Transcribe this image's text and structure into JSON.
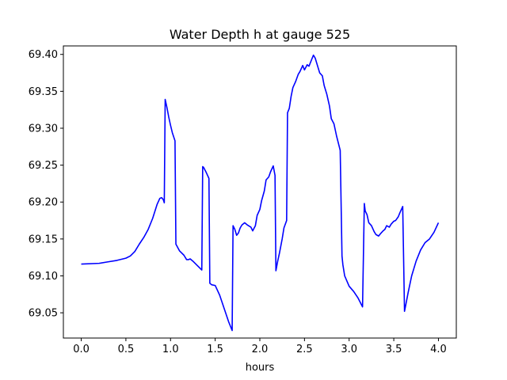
{
  "chart_data": {
    "type": "line",
    "title": "Water Depth h at gauge 525",
    "xlabel": "hours",
    "ylabel": "",
    "xlim": [
      -0.2,
      4.2
    ],
    "ylim": [
      69.0158,
      69.4115
    ],
    "xticks": [
      0.0,
      0.5,
      1.0,
      1.5,
      2.0,
      2.5,
      3.0,
      3.5,
      4.0
    ],
    "xtick_labels": [
      "0.0",
      "0.5",
      "1.0",
      "1.5",
      "2.0",
      "2.5",
      "3.0",
      "3.5",
      "4.0"
    ],
    "yticks": [
      69.05,
      69.1,
      69.15,
      69.2,
      69.25,
      69.3,
      69.35,
      69.4
    ],
    "ytick_labels": [
      "69.05",
      "69.10",
      "69.15",
      "69.20",
      "69.25",
      "69.30",
      "69.35",
      "69.40"
    ],
    "grid": false,
    "series": [
      {
        "color": "#0000ff",
        "x": [
          0.0,
          0.2,
          0.3,
          0.4,
          0.5,
          0.55,
          0.6,
          0.65,
          0.7,
          0.75,
          0.8,
          0.85,
          0.88,
          0.9,
          0.92,
          0.93,
          0.94,
          0.96,
          0.98,
          1.0,
          1.02,
          1.05,
          1.06,
          1.1,
          1.15,
          1.18,
          1.2,
          1.22,
          1.25,
          1.3,
          1.35,
          1.36,
          1.37,
          1.4,
          1.43,
          1.44,
          1.46,
          1.5,
          1.55,
          1.6,
          1.65,
          1.69,
          1.7,
          1.72,
          1.74,
          1.76,
          1.78,
          1.8,
          1.83,
          1.86,
          1.9,
          1.92,
          1.95,
          1.97,
          2.0,
          2.02,
          2.05,
          2.07,
          2.1,
          2.12,
          2.15,
          2.17,
          2.18,
          2.2,
          2.22,
          2.25,
          2.27,
          2.3,
          2.31,
          2.33,
          2.35,
          2.37,
          2.4,
          2.43,
          2.45,
          2.48,
          2.5,
          2.53,
          2.55,
          2.58,
          2.6,
          2.62,
          2.65,
          2.67,
          2.7,
          2.72,
          2.75,
          2.78,
          2.8,
          2.83,
          2.86,
          2.9,
          2.92,
          2.93,
          2.95,
          3.0,
          3.05,
          3.1,
          3.15,
          3.17,
          3.18,
          3.2,
          3.22,
          3.25,
          3.28,
          3.3,
          3.33,
          3.35,
          3.38,
          3.4,
          3.42,
          3.45,
          3.47,
          3.5,
          3.52,
          3.55,
          3.57,
          3.6,
          3.62,
          3.63,
          3.66,
          3.7,
          3.75,
          3.8,
          3.85,
          3.9,
          3.95,
          4.0
        ],
        "y": [
          69.116,
          69.117,
          69.119,
          69.121,
          69.124,
          69.127,
          69.133,
          69.143,
          69.152,
          69.163,
          69.178,
          69.197,
          69.205,
          69.206,
          69.203,
          69.199,
          69.339,
          69.328,
          69.315,
          69.304,
          69.294,
          69.283,
          69.143,
          69.134,
          69.128,
          69.122,
          69.122,
          69.123,
          69.12,
          69.114,
          69.108,
          69.248,
          69.247,
          69.24,
          69.232,
          69.09,
          69.088,
          69.087,
          69.074,
          69.056,
          69.038,
          69.026,
          69.168,
          69.163,
          69.155,
          69.158,
          69.165,
          69.169,
          69.172,
          69.169,
          69.166,
          69.161,
          69.168,
          69.182,
          69.19,
          69.202,
          69.215,
          69.23,
          69.234,
          69.241,
          69.249,
          69.236,
          69.107,
          69.12,
          69.131,
          69.15,
          69.165,
          69.175,
          69.321,
          69.327,
          69.343,
          69.355,
          69.363,
          69.373,
          69.377,
          69.385,
          69.379,
          69.386,
          69.384,
          69.393,
          69.399,
          69.395,
          69.383,
          69.375,
          69.371,
          69.358,
          69.346,
          69.33,
          69.313,
          69.306,
          69.289,
          69.27,
          69.127,
          69.115,
          69.1,
          69.086,
          69.079,
          69.07,
          69.058,
          69.198,
          69.188,
          69.183,
          69.172,
          69.168,
          69.16,
          69.156,
          69.154,
          69.157,
          69.161,
          69.163,
          69.168,
          69.166,
          69.17,
          69.174,
          69.175,
          69.18,
          69.186,
          69.194,
          69.052,
          69.058,
          69.077,
          69.1,
          69.12,
          69.135,
          69.145,
          69.15,
          69.159,
          69.172
        ]
      }
    ]
  }
}
